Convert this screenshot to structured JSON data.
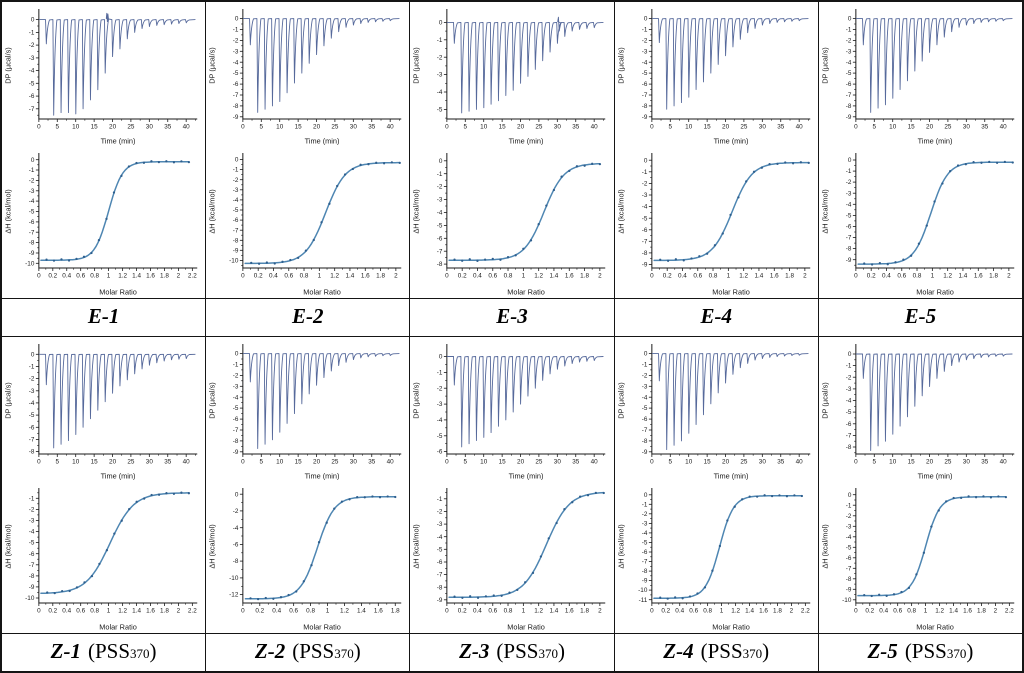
{
  "figure_title": "",
  "chart_common": {
    "dp_ylabel": "DP (µcal/s)",
    "dp_xlabel": "Time (min)",
    "dp_xticks": [
      0,
      5,
      10,
      15,
      20,
      25,
      30,
      35,
      40
    ],
    "dp_xmax": 43,
    "dp_ylim_top": 0.6,
    "iso_ylabel": "ΔH (kcal/mol)",
    "iso_xlabel": "Molar Ratio",
    "injection_interval_min": 2,
    "first_injection_min": 2,
    "curve_color": "#4e86b2",
    "marker_color": "#2e5f8e",
    "spike_color": "#56699b",
    "axis_color": "#1a1a1a",
    "marker_jitter": [
      0.05,
      -0.04,
      0.07,
      -0.06,
      0.03,
      0.06,
      -0.05,
      0.04,
      -0.03,
      0.05,
      -0.06,
      0.03,
      0.05,
      -0.04,
      0.06,
      -0.03,
      0.04,
      -0.05,
      0.03,
      -0.03
    ]
  },
  "chart_data": [
    {
      "panel": "E-1",
      "label": {
        "main": "E-1"
      },
      "dp": {
        "type": "line",
        "ylim_min": -7.8,
        "yticks": [
          0,
          -1,
          -2,
          -3,
          -4,
          -5,
          -6,
          -7
        ],
        "noise_at": 18.5,
        "spike_depths": [
          1.9,
          7.5,
          7.3,
          7.3,
          7.4,
          7.0,
          6.3,
          5.5,
          4.2,
          2.9,
          2.3,
          1.5,
          1.0,
          0.7,
          0.55,
          0.45,
          0.4,
          0.35,
          0.3,
          0.25
        ]
      },
      "iso": {
        "type": "scatter-line",
        "yticks": [
          0,
          -1,
          -2,
          -3,
          -4,
          -5,
          -6,
          -7,
          -8,
          -9,
          -10
        ],
        "ylim_top": 0.45,
        "ylim_min": -10.45,
        "xticks": [
          0,
          0.2,
          0.4,
          0.6,
          0.8,
          1,
          1.2,
          1.4,
          1.6,
          1.8,
          2,
          2.2
        ],
        "x_first": 0.11,
        "x_last": 2.15,
        "n": 20,
        "dh_start": -9.7,
        "dh_end": -0.2,
        "midpoint": 1.0,
        "width": 0.1
      }
    },
    {
      "panel": "E-2",
      "label": {
        "main": "E-2"
      },
      "dp": {
        "type": "line",
        "ylim_min": -9.2,
        "yticks": [
          0,
          -1,
          -2,
          -3,
          -4,
          -5,
          -6,
          -7,
          -8,
          -9
        ],
        "spike_depths": [
          2.4,
          8.6,
          8.3,
          8.0,
          7.6,
          6.8,
          5.9,
          5.0,
          4.1,
          3.3,
          2.5,
          1.8,
          1.2,
          0.8,
          0.6,
          0.45,
          0.35,
          0.3,
          0.25,
          0.2
        ]
      },
      "iso": {
        "type": "scatter-line",
        "yticks": [
          0,
          -1,
          -2,
          -3,
          -4,
          -5,
          -6,
          -7,
          -8,
          -9,
          -10
        ],
        "ylim_top": 0.45,
        "ylim_min": -10.75,
        "xticks": [
          0,
          0.2,
          0.4,
          0.6,
          0.8,
          1,
          1.2,
          1.4,
          1.6,
          1.8,
          2
        ],
        "x_first": 0.11,
        "x_last": 2.05,
        "n": 20,
        "dh_start": -10.3,
        "dh_end": -0.3,
        "midpoint": 1.08,
        "width": 0.13
      }
    },
    {
      "panel": "E-3",
      "label": {
        "main": "E-3"
      },
      "dp": {
        "type": "line",
        "ylim_min": -5.55,
        "yticks": [
          0,
          -1,
          -2,
          -3,
          -4,
          -5
        ],
        "artifact_at": 30.4,
        "spike_depths": [
          1.2,
          5.2,
          5.1,
          5.0,
          4.9,
          4.7,
          4.5,
          4.2,
          3.9,
          3.5,
          3.1,
          2.7,
          2.2,
          1.7,
          1.2,
          0.8,
          0.5,
          0.4,
          0.35,
          0.3
        ]
      },
      "iso": {
        "type": "scatter-line",
        "yticks": [
          0,
          -1,
          -2,
          -3,
          -4,
          -5,
          -6,
          -7,
          -8
        ],
        "ylim_top": 0.45,
        "ylim_min": -8.3,
        "xticks": [
          0,
          0.2,
          0.4,
          0.6,
          0.8,
          1,
          1.2,
          1.4,
          1.6,
          1.8,
          2
        ],
        "x_first": 0.1,
        "x_last": 2.0,
        "n": 20,
        "dh_start": -7.7,
        "dh_end": -0.2,
        "midpoint": 1.27,
        "width": 0.13
      }
    },
    {
      "panel": "E-4",
      "label": {
        "main": "E-4"
      },
      "dp": {
        "type": "line",
        "ylim_min": -9.2,
        "yticks": [
          0,
          -1,
          -2,
          -3,
          -4,
          -5,
          -6,
          -7,
          -8,
          -9
        ],
        "spike_depths": [
          2.2,
          8.3,
          8.0,
          7.7,
          7.2,
          6.5,
          5.8,
          5.0,
          4.2,
          3.4,
          2.6,
          1.9,
          1.3,
          0.9,
          0.6,
          0.45,
          0.35,
          0.3,
          0.25,
          0.2
        ]
      },
      "iso": {
        "type": "scatter-line",
        "yticks": [
          0,
          -1,
          -2,
          -3,
          -4,
          -5,
          -6,
          -7,
          -8,
          -9
        ],
        "ylim_top": 0.45,
        "ylim_min": -9.3,
        "xticks": [
          0,
          0.2,
          0.4,
          0.6,
          0.8,
          1,
          1.2,
          1.4,
          1.6,
          1.8,
          2
        ],
        "x_first": 0.11,
        "x_last": 2.05,
        "n": 20,
        "dh_start": -8.65,
        "dh_end": -0.2,
        "midpoint": 1.05,
        "width": 0.13
      }
    },
    {
      "panel": "E-5",
      "label": {
        "main": "E-5"
      },
      "dp": {
        "type": "line",
        "ylim_min": -9.2,
        "yticks": [
          0,
          -1,
          -2,
          -3,
          -4,
          -5,
          -6,
          -7,
          -8,
          -9
        ],
        "spike_depths": [
          2.4,
          8.6,
          8.2,
          7.9,
          7.3,
          6.5,
          5.7,
          4.8,
          3.9,
          3.1,
          2.4,
          1.7,
          1.2,
          0.8,
          0.6,
          0.45,
          0.35,
          0.3,
          0.25,
          0.2
        ]
      },
      "iso": {
        "type": "scatter-line",
        "yticks": [
          0,
          -1,
          -2,
          -3,
          -4,
          -5,
          -6,
          -7,
          -8,
          -9
        ],
        "ylim_top": 0.45,
        "ylim_min": -9.75,
        "xticks": [
          0,
          0.2,
          0.4,
          0.6,
          0.8,
          1,
          1.2,
          1.4,
          1.6,
          1.8,
          2
        ],
        "x_first": 0.11,
        "x_last": 2.05,
        "n": 20,
        "dh_start": -9.4,
        "dh_end": -0.2,
        "midpoint": 0.98,
        "width": 0.11
      }
    },
    {
      "panel": "Z-1",
      "label": {
        "main": "Z-1",
        "paren": "(PSS",
        "sub": "370",
        "close": ")"
      },
      "dp": {
        "type": "line",
        "ylim_min": -8.2,
        "yticks": [
          0,
          -1,
          -2,
          -3,
          -4,
          -5,
          -6,
          -7,
          -8
        ],
        "spike_depths": [
          2.5,
          7.7,
          7.4,
          7.1,
          6.6,
          6.0,
          5.3,
          4.6,
          3.9,
          3.2,
          2.6,
          2.1,
          1.6,
          1.2,
          0.9,
          0.7,
          0.55,
          0.45,
          0.4,
          0.35
        ]
      },
      "iso": {
        "type": "scatter-line",
        "yticks": [
          -1,
          -2,
          -3,
          -4,
          -5,
          -6,
          -7,
          -8,
          -9,
          -10
        ],
        "ylim_top": -0.25,
        "ylim_min": -10.45,
        "xticks": [
          0,
          0.2,
          0.4,
          0.6,
          0.8,
          1,
          1.2,
          1.4,
          1.6,
          1.8,
          2,
          2.2
        ],
        "x_first": 0.12,
        "x_last": 2.15,
        "n": 20,
        "dh_start": -9.6,
        "dh_end": -0.5,
        "midpoint": 1.02,
        "width": 0.17
      }
    },
    {
      "panel": "Z-2",
      "label": {
        "main": "Z-2",
        "paren": "(PSS",
        "sub": "370",
        "close": ")"
      },
      "dp": {
        "type": "line",
        "ylim_min": -9.2,
        "yticks": [
          0,
          -1,
          -2,
          -3,
          -4,
          -5,
          -6,
          -7,
          -8,
          -9
        ],
        "spike_depths": [
          2.6,
          8.7,
          8.3,
          7.9,
          7.2,
          6.4,
          5.5,
          4.6,
          3.7,
          2.9,
          2.2,
          1.6,
          1.1,
          0.8,
          0.55,
          0.4,
          0.3,
          0.25,
          0.2,
          0.18
        ]
      },
      "iso": {
        "type": "scatter-line",
        "yticks": [
          0,
          -2,
          -4,
          -6,
          -8,
          -10,
          -12
        ],
        "ylim_top": 0.5,
        "ylim_min": -13.0,
        "xticks": [
          0,
          0.2,
          0.4,
          0.6,
          0.8,
          1,
          1.2,
          1.4,
          1.6,
          1.8
        ],
        "x_first": 0.09,
        "x_last": 1.8,
        "n": 20,
        "dh_start": -12.5,
        "dh_end": -0.3,
        "midpoint": 0.88,
        "width": 0.1
      }
    },
    {
      "panel": "Z-3",
      "label": {
        "main": "Z-3",
        "paren": "(PSS",
        "sub": "370",
        "close": ")"
      },
      "dp": {
        "type": "line",
        "ylim_min": -6.15,
        "yticks": [
          0,
          -1,
          -2,
          -3,
          -4,
          -5,
          -6
        ],
        "spike_depths": [
          1.8,
          5.7,
          5.5,
          5.3,
          5.1,
          4.8,
          4.4,
          4.0,
          3.5,
          3.0,
          2.5,
          2.0,
          1.5,
          1.1,
          0.8,
          0.6,
          0.45,
          0.35,
          0.3,
          0.25
        ]
      },
      "iso": {
        "type": "scatter-line",
        "yticks": [
          -1,
          -2,
          -3,
          -4,
          -5,
          -6,
          -7,
          -8,
          -9
        ],
        "ylim_top": -0.3,
        "ylim_min": -9.25,
        "xticks": [
          0,
          0.2,
          0.4,
          0.6,
          0.8,
          1,
          1.2,
          1.4,
          1.6,
          1.8,
          2
        ],
        "x_first": 0.1,
        "x_last": 2.05,
        "n": 20,
        "dh_start": -8.8,
        "dh_end": -0.45,
        "midpoint": 1.3,
        "width": 0.15
      }
    },
    {
      "panel": "Z-4",
      "label": {
        "main": "Z-4",
        "paren": "(PSS",
        "sub": "370",
        "close": ")"
      },
      "dp": {
        "type": "line",
        "ylim_min": -9.2,
        "yticks": [
          0,
          -1,
          -2,
          -3,
          -4,
          -5,
          -6,
          -7,
          -8,
          -9
        ],
        "spike_depths": [
          2.5,
          8.8,
          8.4,
          8.0,
          7.3,
          6.5,
          5.6,
          4.6,
          3.6,
          2.7,
          1.9,
          1.3,
          0.9,
          0.6,
          0.45,
          0.35,
          0.28,
          0.22,
          0.18,
          0.15
        ]
      },
      "iso": {
        "type": "scatter-line",
        "yticks": [
          0,
          -1,
          -2,
          -3,
          -4,
          -5,
          -6,
          -7,
          -8,
          -9,
          -10,
          -11
        ],
        "ylim_top": 0.5,
        "ylim_min": -11.35,
        "xticks": [
          0,
          0.2,
          0.4,
          0.6,
          0.8,
          1,
          1.2,
          1.4,
          1.6,
          1.8,
          2,
          2.2
        ],
        "x_first": 0.12,
        "x_last": 2.15,
        "n": 20,
        "dh_start": -10.85,
        "dh_end": -0.1,
        "midpoint": 0.97,
        "width": 0.1
      }
    },
    {
      "panel": "Z-5",
      "label": {
        "main": "Z-5",
        "paren": "(PSS",
        "sub": "370",
        "close": ")"
      },
      "dp": {
        "type": "line",
        "ylim_min": -8.6,
        "yticks": [
          0,
          -1,
          -2,
          -3,
          -4,
          -5,
          -6,
          -7,
          -8
        ],
        "spike_depths": [
          2.1,
          8.3,
          7.9,
          7.5,
          6.9,
          6.2,
          5.4,
          4.5,
          3.6,
          2.8,
          2.1,
          1.5,
          1.0,
          0.7,
          0.5,
          0.4,
          0.3,
          0.25,
          0.2,
          0.18
        ]
      },
      "iso": {
        "type": "scatter-line",
        "yticks": [
          0,
          -1,
          -2,
          -3,
          -4,
          -5,
          -6,
          -7,
          -8,
          -9,
          -10
        ],
        "ylim_top": 0.45,
        "ylim_min": -10.3,
        "xticks": [
          0,
          0.2,
          0.4,
          0.6,
          0.8,
          1,
          1.2,
          1.4,
          1.6,
          1.8,
          2,
          2.2
        ],
        "x_first": 0.12,
        "x_last": 2.15,
        "n": 20,
        "dh_start": -9.6,
        "dh_end": -0.2,
        "midpoint": 1.0,
        "width": 0.1
      }
    }
  ]
}
